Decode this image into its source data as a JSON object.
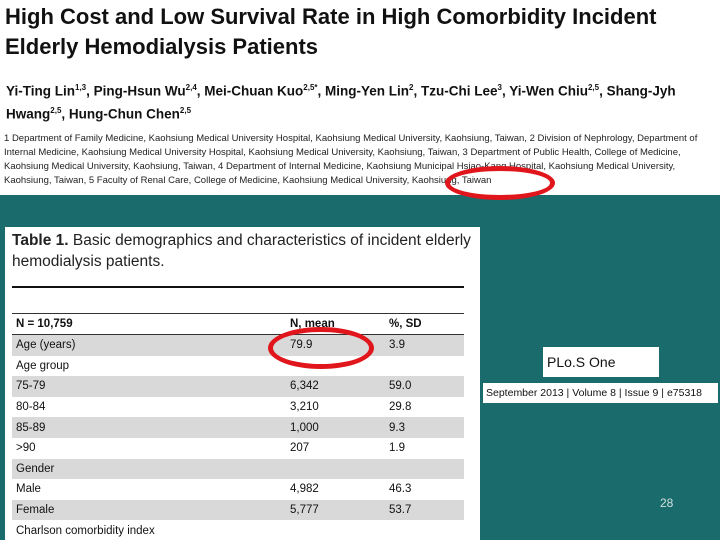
{
  "title": "High Cost and Low Survival Rate in High Comorbidity Incident Elderly Hemodialysis Patients",
  "authors": [
    {
      "name": "Yi-Ting Lin",
      "aff": "1,3"
    },
    {
      "name": "Ping-Hsun Wu",
      "aff": "2,4"
    },
    {
      "name": "Mei-Chuan Kuo",
      "aff": "2,5*"
    },
    {
      "name": "Ming-Yen Lin",
      "aff": "2"
    },
    {
      "name": "Tzu-Chi Lee",
      "aff": "3"
    },
    {
      "name": "Yi-Wen Chiu",
      "aff": "2,5"
    },
    {
      "name": "Shang-Jyh Hwang",
      "aff": "2,5"
    },
    {
      "name": "Hung-Chun Chen",
      "aff": "2,5"
    }
  ],
  "affiliations": [
    {
      "num": "1",
      "text": "Department of Family Medicine, Kaohsiung Medical University Hospital, Kaohsiung Medical University, Kaohsiung, Taiwan,"
    },
    {
      "num": "2",
      "text": "Division of Nephrology, Department of Internal Medicine, Kaohsiung Medical University Hospital, Kaohsiung Medical University, Kaohsiung, Taiwan,"
    },
    {
      "num": "3",
      "text": "Department of Public Health, College of Medicine, Kaohsiung Medical University, Kaohsiung, Taiwan,"
    },
    {
      "num": "4",
      "text": "Department of Internal Medicine, Kaohsiung Municipal Hsiao-Kang Hospital, Kaohsiung Medical University, Kaohsiung, Taiwan,"
    },
    {
      "num": "5",
      "text": "Faculty of Renal Care, College of Medicine, Kaohsiung Medical University, Kaohsiung, Taiwan"
    }
  ],
  "table": {
    "label": "Table 1.",
    "caption": "Basic demographics and characteristics of incident elderly hemodialysis patients.",
    "headers": [
      "N = 10,759",
      "N, mean",
      "%, SD"
    ],
    "rows": [
      [
        "Age (years)",
        "79.9",
        "3.9"
      ],
      [
        "Age group",
        "",
        ""
      ],
      [
        "75-79",
        "6,342",
        "59.0"
      ],
      [
        "80-84",
        "3,210",
        "29.8"
      ],
      [
        "85-89",
        "1,000",
        "9.3"
      ],
      [
        ">90",
        "207",
        "1.9"
      ],
      [
        "Gender",
        "",
        ""
      ],
      [
        "Male",
        "4,982",
        "46.3"
      ],
      [
        "Female",
        "5,777",
        "53.7"
      ],
      [
        "Charlson comorbidity index",
        "",
        ""
      ]
    ]
  },
  "journal": "PLo.S One",
  "citation": "September 2013 | Volume 8 | Issue 9 | e75318",
  "page_number": "28",
  "colors": {
    "background": "#1a6b6b",
    "highlight": "#e0161c"
  }
}
